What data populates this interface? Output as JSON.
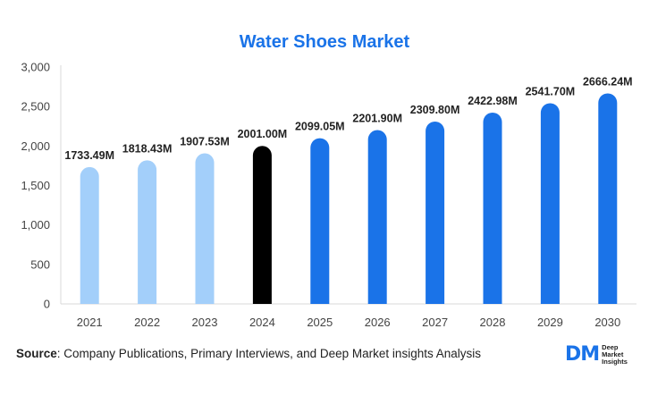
{
  "chart_data": {
    "type": "bar",
    "title": "Water Shoes Market",
    "categories": [
      "2021",
      "2022",
      "2023",
      "2024",
      "2025",
      "2026",
      "2027",
      "2028",
      "2029",
      "2030"
    ],
    "values": [
      1733.49,
      1818.43,
      1907.53,
      2001.0,
      2099.05,
      2201.9,
      2309.8,
      2422.98,
      2541.7,
      2666.24
    ],
    "data_labels": [
      "1733.49M",
      "1818.43M",
      "1907.53M",
      "2001.00M",
      "2099.05M",
      "2201.90M",
      "2309.80M",
      "2422.98M",
      "2541.70M",
      "2666.24M"
    ],
    "ylim": [
      0,
      3000
    ],
    "yticks": [
      0,
      500,
      1000,
      1500,
      2000,
      2500,
      3000
    ],
    "ytick_labels": [
      "0",
      "500",
      "1,000",
      "1,500",
      "2,000",
      "2,500",
      "3,000"
    ],
    "xlabel": "",
    "ylabel": "",
    "grid": false,
    "bar_colors": [
      "#a3cffa",
      "#a3cffa",
      "#a3cffa",
      "#000000",
      "#1a73e8",
      "#1a73e8",
      "#1a73e8",
      "#1a73e8",
      "#1a73e8",
      "#1a73e8"
    ]
  },
  "footer": {
    "source_label": "Source",
    "source_text": ": Company Publications, Primary Interviews, and Deep Market insights Analysis"
  },
  "logo": {
    "mark": "DM",
    "line1": "Deep",
    "line2": "Market",
    "line3": "Insights"
  }
}
